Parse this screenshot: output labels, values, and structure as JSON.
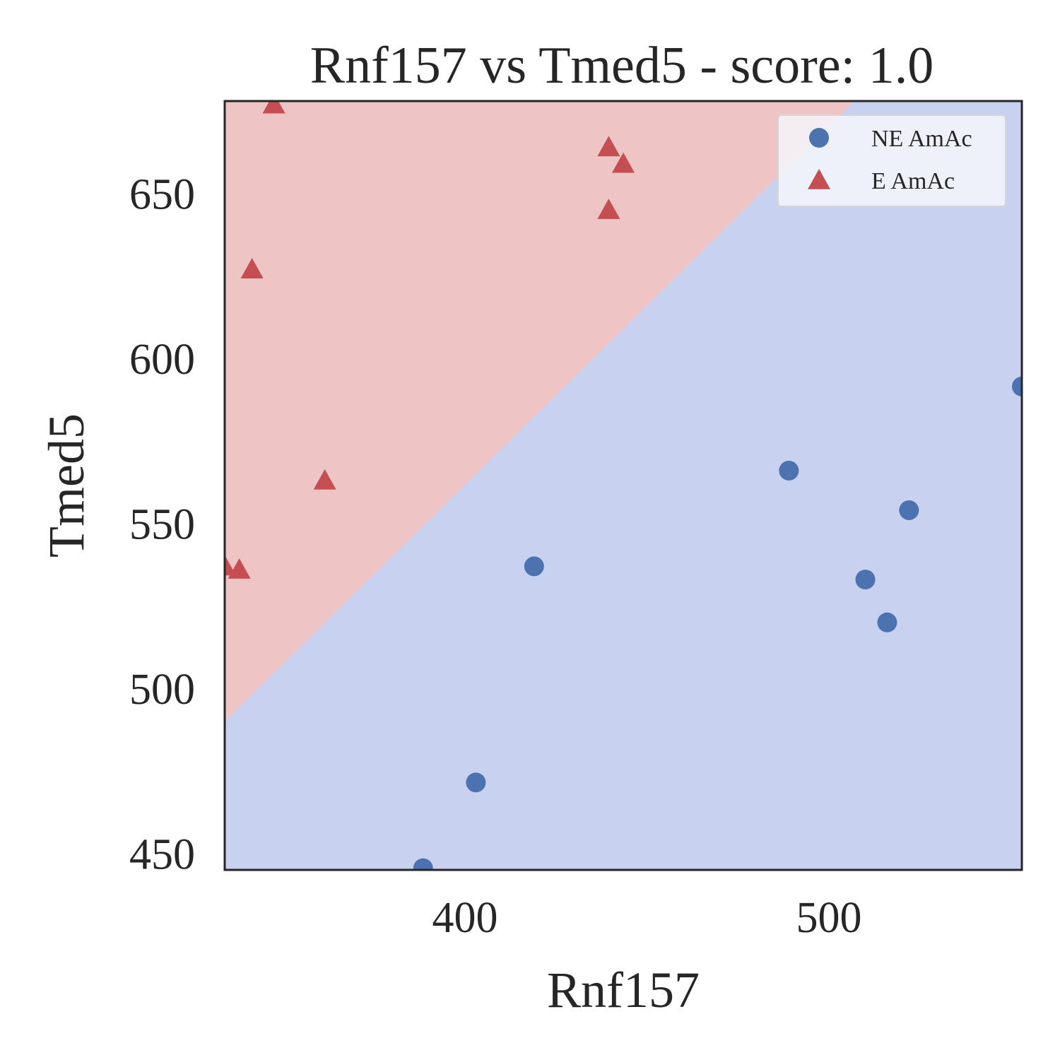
{
  "chart_data": {
    "type": "scatter",
    "title": "Rnf157 vs Tmed5 - score: 1.0",
    "xlabel": "Rnf157",
    "ylabel": "Tmed5",
    "xlim": [
      334,
      553
    ],
    "ylim": [
      445,
      678
    ],
    "xticks": [
      400,
      500
    ],
    "yticks": [
      450,
      500,
      550,
      600,
      650
    ],
    "grid": false,
    "legend_position": "top-right",
    "decision_boundary": {
      "points": [
        [
          334,
          490
        ],
        [
          507,
          678
        ]
      ],
      "upper_region_color": "#eec4c4",
      "lower_region_color": "#c9d1f1"
    },
    "series": [
      {
        "name": "NE AmAc",
        "marker": "circle",
        "color": "#4c72b0",
        "points": [
          [
            388.5,
            445.5
          ],
          [
            403,
            471.5
          ],
          [
            419,
            537
          ],
          [
            489,
            566
          ],
          [
            510,
            533
          ],
          [
            516,
            520
          ],
          [
            522,
            554
          ],
          [
            553,
            591.5
          ]
        ]
      },
      {
        "name": "E AmAc",
        "marker": "triangle",
        "color": "#c44e52",
        "points": [
          [
            347.5,
            677
          ],
          [
            341.5,
            627
          ],
          [
            361.5,
            563
          ],
          [
            338,
            536
          ],
          [
            334,
            537
          ],
          [
            439.5,
            664
          ],
          [
            443.5,
            659
          ],
          [
            439.5,
            645
          ]
        ]
      }
    ]
  }
}
